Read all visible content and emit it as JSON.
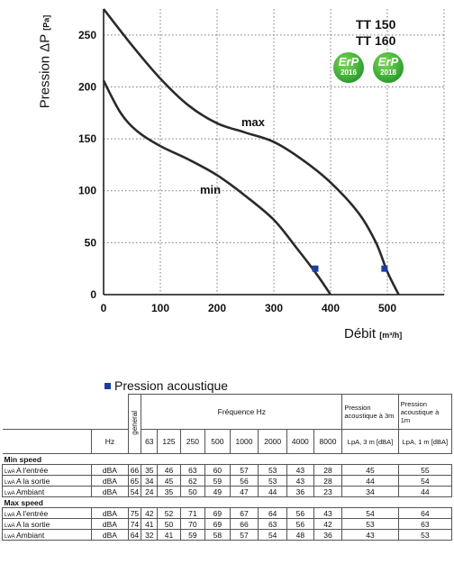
{
  "chart_data": {
    "type": "line",
    "title": "",
    "ylabel": "Pression ΔP",
    "ylabel_unit": "[Pa]",
    "xlabel": "Débit",
    "xlabel_unit": "[m³/h]",
    "xlim": [
      0,
      600
    ],
    "ylim": [
      0,
      275
    ],
    "xticks": [
      0,
      100,
      200,
      300,
      400,
      500
    ],
    "yticks": [
      0,
      50,
      100,
      150,
      200,
      250
    ],
    "grid": true,
    "series": [
      {
        "name": "max",
        "points": [
          [
            0,
            275
          ],
          [
            50,
            240
          ],
          [
            100,
            208
          ],
          [
            150,
            182
          ],
          [
            200,
            165
          ],
          [
            250,
            156
          ],
          [
            300,
            147
          ],
          [
            350,
            130
          ],
          [
            400,
            108
          ],
          [
            450,
            78
          ],
          [
            480,
            50
          ],
          [
            500,
            22
          ],
          [
            520,
            0
          ]
        ],
        "marker": [
          495,
          25
        ]
      },
      {
        "name": "min",
        "points": [
          [
            0,
            206
          ],
          [
            30,
            175
          ],
          [
            60,
            157
          ],
          [
            100,
            143
          ],
          [
            150,
            130
          ],
          [
            200,
            115
          ],
          [
            250,
            95
          ],
          [
            300,
            72
          ],
          [
            340,
            45
          ],
          [
            375,
            20
          ],
          [
            400,
            0
          ]
        ],
        "marker": [
          373,
          25
        ]
      }
    ]
  },
  "models": [
    "TT 150",
    "TT 160"
  ],
  "erp_badges": [
    {
      "text": "ErP",
      "year": "2016"
    },
    {
      "text": "ErP",
      "year": "2018"
    }
  ],
  "colors": {
    "curve": "#2a2a2a",
    "marker": "#1a3fa0",
    "grid": "#7a7a7a",
    "erp": "#3aa935"
  },
  "table": {
    "legend": "Pression acoustique",
    "col_general": "general",
    "col_frequence": "Fréquence Hz",
    "col_lpa3_head": "Pression acoustique à 3m",
    "col_lpa1_head": "Pression acoustique à 1m",
    "unit_hz": "Hz",
    "frequencies": [
      "63",
      "125",
      "250",
      "500",
      "1000",
      "2000",
      "4000",
      "8000"
    ],
    "col_lpa3_unit": "LpA, 3 m [dBA]",
    "col_lpa1_unit": "LpA, 1 m [dBA]",
    "sections": [
      {
        "title": "Min speed",
        "rows": [
          {
            "label": "A l'entrée",
            "unit": "dBA",
            "general": "66",
            "values": [
              "35",
              "46",
              "63",
              "60",
              "57",
              "53",
              "43",
              "28"
            ],
            "lpa3": "45",
            "lpa1": "55"
          },
          {
            "label": "A la sortie",
            "unit": "dBA",
            "general": "65",
            "values": [
              "34",
              "45",
              "62",
              "59",
              "56",
              "53",
              "43",
              "28"
            ],
            "lpa3": "44",
            "lpa1": "54"
          },
          {
            "label": "Ambiant",
            "unit": "dBA",
            "general": "54",
            "values": [
              "24",
              "35",
              "50",
              "49",
              "47",
              "44",
              "36",
              "23"
            ],
            "lpa3": "34",
            "lpa1": "44"
          }
        ]
      },
      {
        "title": "Max speed",
        "rows": [
          {
            "label": "A l'entrée",
            "unit": "dBA",
            "general": "75",
            "values": [
              "42",
              "52",
              "71",
              "69",
              "67",
              "64",
              "56",
              "43"
            ],
            "lpa3": "54",
            "lpa1": "64"
          },
          {
            "label": "A la sortie",
            "unit": "dBA",
            "general": "74",
            "values": [
              "41",
              "50",
              "70",
              "69",
              "66",
              "63",
              "56",
              "42"
            ],
            "lpa3": "53",
            "lpa1": "63"
          },
          {
            "label": "Ambiant",
            "unit": "dBA",
            "general": "64",
            "values": [
              "32",
              "41",
              "59",
              "58",
              "57",
              "54",
              "48",
              "36"
            ],
            "lpa3": "43",
            "lpa1": "53"
          }
        ]
      }
    ]
  }
}
